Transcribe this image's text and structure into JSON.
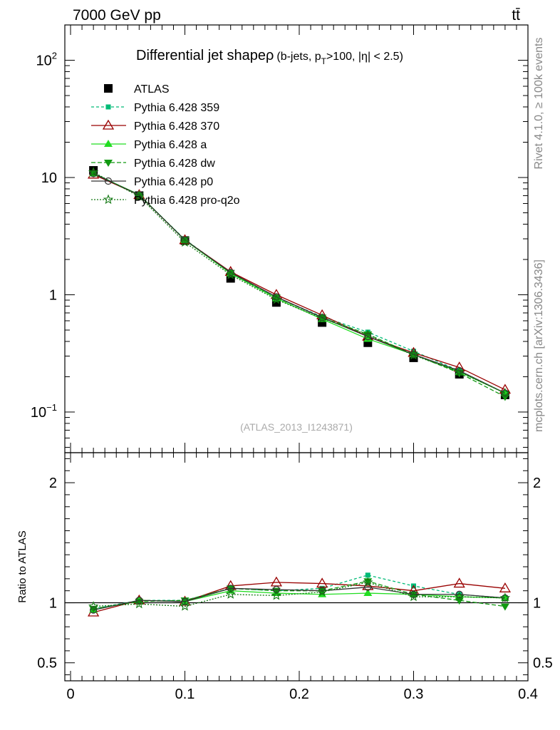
{
  "header": {
    "energy_label": "7000 GeV pp",
    "process_label": "tt̄",
    "side_label_rivet": "Rivet 4.1.0, ≥ 100k events",
    "side_label_mcplots": "mcplots.cern.ch [arXiv:1306.3436]"
  },
  "chart_data": [
    {
      "type": "line",
      "panel": "main",
      "title": "Differential jet shape ρ (b-jets, p_T > 100, |η| < 2.5)",
      "title_main": "Differential jet shape",
      "title_rho": "ρ",
      "title_sub_a": "(b-jets, p",
      "title_sub_T": "T",
      "title_sub_b": ">100, |η| < 2.5)",
      "watermark": "(ATLAS_2013_I1243871)",
      "yscale": "log",
      "ylim": [
        0.045,
        200
      ],
      "xlim": [
        -0.005,
        0.4
      ],
      "ytick_labels": [
        {
          "v": 0.1,
          "base": "10",
          "exp": "−1"
        },
        {
          "v": 1,
          "base": "1",
          "exp": ""
        },
        {
          "v": 10,
          "base": "10",
          "exp": ""
        },
        {
          "v": 100,
          "base": "10",
          "exp": "2"
        }
      ],
      "x": [
        0.02,
        0.06,
        0.1,
        0.14,
        0.18,
        0.22,
        0.26,
        0.3,
        0.34,
        0.38
      ],
      "series": [
        {
          "name": "ATLAS",
          "color": "#000000",
          "dash": "",
          "marker": "square",
          "values": [
            11.5,
            7.0,
            2.9,
            1.38,
            0.86,
            0.58,
            0.39,
            0.29,
            0.21,
            0.14
          ]
        },
        {
          "name": "Pythia 6.428 359",
          "color": "#00bb77",
          "dash": "4,3",
          "marker": "smallsquare",
          "values": [
            10.9,
            7.1,
            2.96,
            1.55,
            0.95,
            0.65,
            0.48,
            0.33,
            0.225,
            0.145
          ]
        },
        {
          "name": "Pythia 6.428 370",
          "color": "#990000",
          "dash": "",
          "marker": "triangle-open",
          "values": [
            10.6,
            7.1,
            2.93,
            1.57,
            1.0,
            0.67,
            0.44,
            0.32,
            0.24,
            0.155
          ]
        },
        {
          "name": "Pythia 6.428 a",
          "color": "#22dd22",
          "dash": "",
          "marker": "triangle",
          "values": [
            10.8,
            7.15,
            2.92,
            1.52,
            0.93,
            0.62,
            0.42,
            0.31,
            0.22,
            0.145
          ]
        },
        {
          "name": "Pythia 6.428 dw",
          "color": "#119911",
          "dash": "6,3",
          "marker": "triangle-down",
          "values": [
            10.9,
            7.05,
            2.95,
            1.54,
            0.95,
            0.64,
            0.46,
            0.31,
            0.215,
            0.135
          ]
        },
        {
          "name": "Pythia 6.428 p0",
          "color": "#333333",
          "dash": "",
          "marker": "circle-open",
          "values": [
            10.8,
            7.1,
            2.93,
            1.55,
            0.96,
            0.64,
            0.44,
            0.31,
            0.225,
            0.145
          ]
        },
        {
          "name": "Pythia 6.428 pro-q2o",
          "color": "#117711",
          "dash": "2,2",
          "marker": "star",
          "values": [
            11.1,
            6.9,
            2.8,
            1.48,
            0.91,
            0.63,
            0.455,
            0.305,
            0.22,
            0.145
          ]
        }
      ]
    },
    {
      "type": "line",
      "panel": "ratio",
      "ylabel": "Ratio to ATLAS",
      "xlabel": "",
      "ylim": [
        0.35,
        2.25
      ],
      "xlim": [
        -0.005,
        0.4
      ],
      "yticks": [
        0.5,
        1,
        2
      ],
      "ytick_labels": [
        "0.5",
        "1",
        "2"
      ],
      "xticks": [
        0,
        0.1,
        0.2,
        0.3,
        0.4
      ],
      "xtick_labels": [
        "0",
        "0.1",
        "0.2",
        "0.3",
        "0.4"
      ],
      "x": [
        0.02,
        0.06,
        0.1,
        0.14,
        0.18,
        0.22,
        0.26,
        0.3,
        0.34,
        0.38
      ],
      "series": [
        {
          "name": "Pythia 6.428 359",
          "values": [
            0.95,
            1.02,
            1.02,
            1.12,
            1.1,
            1.12,
            1.23,
            1.14,
            1.07,
            1.04
          ]
        },
        {
          "name": "Pythia 6.428 370",
          "values": [
            0.92,
            1.02,
            1.01,
            1.14,
            1.17,
            1.16,
            1.14,
            1.1,
            1.16,
            1.12
          ]
        },
        {
          "name": "Pythia 6.428 a",
          "values": [
            0.94,
            1.02,
            1.01,
            1.1,
            1.08,
            1.07,
            1.08,
            1.07,
            1.05,
            1.04
          ]
        },
        {
          "name": "Pythia 6.428 dw",
          "values": [
            0.95,
            1.01,
            1.02,
            1.12,
            1.1,
            1.1,
            1.18,
            1.07,
            1.02,
            0.97
          ]
        },
        {
          "name": "Pythia 6.428 p0",
          "values": [
            0.94,
            1.02,
            1.01,
            1.12,
            1.11,
            1.1,
            1.13,
            1.07,
            1.07,
            1.04
          ]
        },
        {
          "name": "Pythia 6.428 pro-q2o",
          "values": [
            0.97,
            0.99,
            0.97,
            1.07,
            1.06,
            1.09,
            1.17,
            1.05,
            1.05,
            1.04
          ]
        }
      ]
    }
  ]
}
